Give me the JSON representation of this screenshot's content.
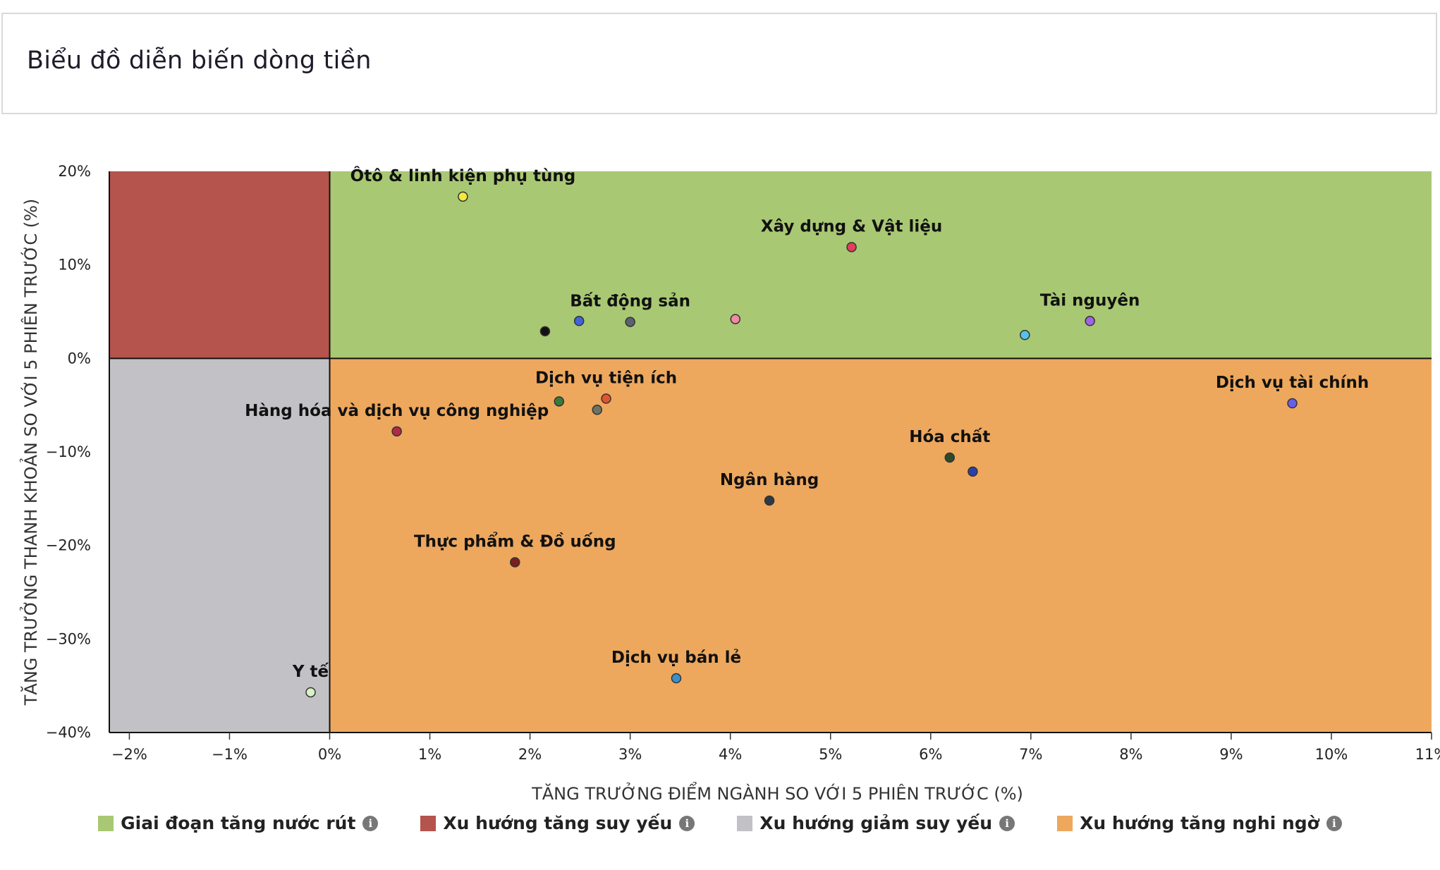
{
  "page": {
    "title": "Biểu đồ diễn biến dòng tiền"
  },
  "chart_data": {
    "type": "scatter",
    "xlabel": "TĂNG TRƯỞNG ĐIỂM NGÀNH SO VỚI 5 PHIÊN TRƯỚC (%)",
    "ylabel": "TĂNG TRƯỞNG THANH KHOẢN SO VỚI 5 PHIÊN TRƯỚC (%)",
    "xlim": [
      -2.2,
      11
    ],
    "ylim": [
      -40,
      20
    ],
    "x_ticks": [
      -2,
      -1,
      0,
      1,
      2,
      3,
      4,
      5,
      6,
      7,
      8,
      9,
      10,
      11
    ],
    "x_tick_labels": [
      "−2%",
      "−1%",
      "0%",
      "1%",
      "2%",
      "3%",
      "4%",
      "5%",
      "6%",
      "7%",
      "8%",
      "9%",
      "10%",
      "11%"
    ],
    "y_ticks": [
      20,
      10,
      0,
      -10,
      -20,
      -30,
      -40
    ],
    "y_tick_labels": [
      "20%",
      "10%",
      "0%",
      "−10%",
      "−20%",
      "−30%",
      "−40%"
    ],
    "quadrant_colors": {
      "top_right": "#a9c873",
      "top_left": "#b5534d",
      "bottom_left": "#c2c2c6",
      "bottom_right": "#eda85e"
    },
    "points": [
      {
        "label": "Ôtô & linh kiện phụ tùng",
        "x": 1.33,
        "y": 17.3,
        "color": "#f2ea3c"
      },
      {
        "label": "Xây dựng & Vật liệu",
        "x": 5.21,
        "y": 11.9,
        "color": "#e0405a"
      },
      {
        "label": "Bất động sản",
        "x": 3.0,
        "y": 3.9,
        "color": "#5c6170"
      },
      {
        "label": "",
        "x": 2.15,
        "y": 2.9,
        "color": "#111111"
      },
      {
        "label": "",
        "x": 2.49,
        "y": 4.0,
        "color": "#3f63d8"
      },
      {
        "label": "",
        "x": 4.05,
        "y": 4.2,
        "color": "#f08aa6"
      },
      {
        "label": "Tài nguyên",
        "x": 7.59,
        "y": 4.0,
        "color": "#a064e0"
      },
      {
        "label": "",
        "x": 6.94,
        "y": 2.5,
        "color": "#56c2ec"
      },
      {
        "label": "Dịch vụ tài chính",
        "x": 9.61,
        "y": -4.8,
        "color": "#6660e8"
      },
      {
        "label": "Dịch vụ tiện ích",
        "x": 2.76,
        "y": -4.3,
        "color": "#e5522e"
      },
      {
        "label": "",
        "x": 2.29,
        "y": -4.6,
        "color": "#3a7a3a"
      },
      {
        "label": "",
        "x": 2.67,
        "y": -5.5,
        "color": "#6c7360"
      },
      {
        "label": "Hàng hóa và dịch vụ công nghiệp",
        "x": 0.67,
        "y": -7.8,
        "color": "#b02a48"
      },
      {
        "label": "Hóa chất",
        "x": 6.19,
        "y": -10.6,
        "color": "#2e4a2a"
      },
      {
        "label": "",
        "x": 6.42,
        "y": -12.1,
        "color": "#2c3fa8"
      },
      {
        "label": "Ngân hàng",
        "x": 4.39,
        "y": -15.2,
        "color": "#2d3a44"
      },
      {
        "label": "Thực phẩm & Đồ uống",
        "x": 1.85,
        "y": -21.8,
        "color": "#7a1f1f"
      },
      {
        "label": "Dịch vụ bán lẻ",
        "x": 3.46,
        "y": -34.2,
        "color": "#3b8fcb"
      },
      {
        "label": "Y tế",
        "x": -0.19,
        "y": -35.7,
        "color": "#d9f2c4"
      }
    ],
    "legend": [
      {
        "label": "Giai đoạn tăng nước rút",
        "color": "#a9c873"
      },
      {
        "label": "Xu hướng tăng suy yếu",
        "color": "#b5534d"
      },
      {
        "label": "Xu hướng giảm suy yếu",
        "color": "#c2c2c6"
      },
      {
        "label": "Xu hướng tăng nghi ngờ",
        "color": "#eda85e"
      }
    ],
    "legend_position": "bottom"
  }
}
